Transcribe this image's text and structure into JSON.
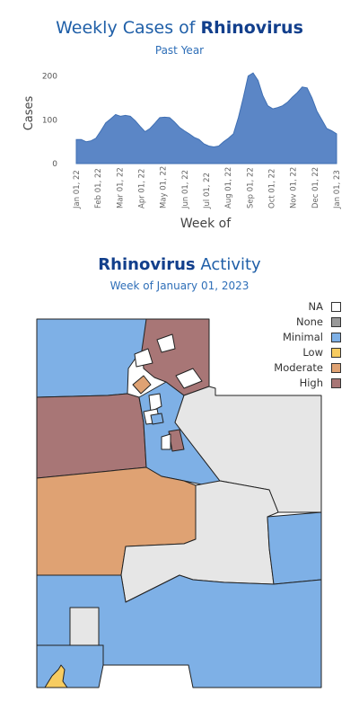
{
  "chart": {
    "title_prefix": "Weekly Cases of ",
    "title_bold": "Rhinovirus",
    "subtitle": "Past Year",
    "ylabel": "Cases",
    "xlabel": "Week of",
    "color": "#5b86c6"
  },
  "chart_data": {
    "type": "area",
    "title": "Weekly Cases of Rhinovirus",
    "subtitle": "Past Year",
    "xlabel": "Week of",
    "ylabel": "Cases",
    "ylim": [
      0,
      230
    ],
    "y_ticks": [
      0,
      100,
      200
    ],
    "x_tick_labels": [
      "Jan 01, 22",
      "Feb 01, 22",
      "Mar 01, 22",
      "Apr 01, 22",
      "May 01, 22",
      "Jun 01, 22",
      "Jul 01, 22",
      "Aug 01, 22",
      "Sep 01, 22",
      "Oct 01, 22",
      "Nov 01, 22",
      "Dec 01, 22",
      "Jan 01, 23"
    ],
    "grid": false,
    "series": [
      {
        "values": [
          55,
          55,
          50,
          52,
          58,
          75,
          93,
          102,
          112,
          108,
          110,
          108,
          98,
          85,
          73,
          80,
          92,
          105,
          106,
          105,
          95,
          83,
          75,
          68,
          60,
          55,
          45,
          40,
          38,
          40,
          50,
          58,
          68,
          105,
          150,
          200,
          207,
          190,
          155,
          132,
          125,
          128,
          132,
          140,
          152,
          162,
          175,
          173,
          150,
          120,
          100,
          80,
          75,
          68
        ]
      }
    ]
  },
  "map": {
    "title_bold": "Rhinovirus",
    "title_rest": " Activity",
    "subtitle": "Week of January 01, 2023",
    "colors": {
      "na": "#ffffff",
      "none": "#999999",
      "minimal": "#7eb0e6",
      "low": "#f7cc61",
      "moderate": "#dfa273",
      "high": "#a87676",
      "grey_region": "#e6e6e6"
    },
    "legend": [
      {
        "label": "NA",
        "color": "#ffffff"
      },
      {
        "label": "None",
        "color": "#999999"
      },
      {
        "label": "Minimal",
        "color": "#7eb0e6"
      },
      {
        "label": "Low",
        "color": "#f7cc61"
      },
      {
        "label": "Moderate",
        "color": "#dfa273"
      },
      {
        "label": "High",
        "color": "#a87676"
      }
    ]
  }
}
